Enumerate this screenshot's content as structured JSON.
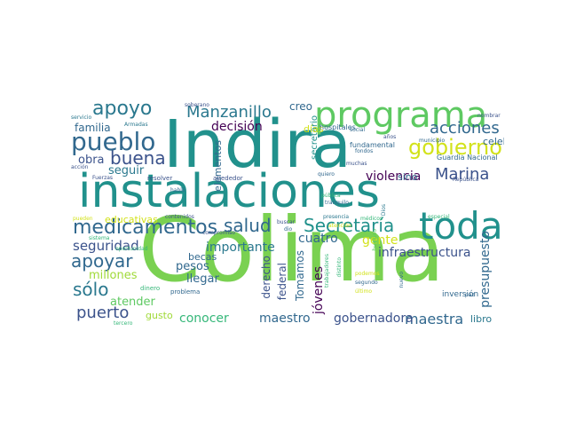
{
  "palette": {
    "teal": "#21918c",
    "green": "#5ec962",
    "lime": "#7ad151",
    "yellow": "#d2e21b",
    "purple": "#440154",
    "indigo": "#3b528b",
    "blue": "#31688e",
    "sea": "#2a788e",
    "mint": "#35b779",
    "pale": "#a0da39"
  },
  "words": [
    {
      "text": "Colima",
      "color": "#7ad151"
    },
    {
      "text": "Indira",
      "color": "#21918c"
    },
    {
      "text": "instalaciones",
      "color": "#21918c"
    },
    {
      "text": "programa",
      "color": "#5ec962"
    },
    {
      "text": "toda",
      "color": "#21918c"
    },
    {
      "text": "pueblo",
      "color": "#31688e"
    },
    {
      "text": "gobierno",
      "color": "#d2e21b"
    },
    {
      "text": "apoyo",
      "color": "#2a788e"
    },
    {
      "text": "Manzanillo",
      "color": "#2a788e"
    },
    {
      "text": "medicamentos",
      "color": "#31688e"
    },
    {
      "text": "Secretaría",
      "color": "#21918c"
    },
    {
      "text": "acciones",
      "color": "#31688e"
    },
    {
      "text": "buena",
      "color": "#3b528b"
    },
    {
      "text": "Marina",
      "color": "#3b528b"
    },
    {
      "text": "apoyar",
      "color": "#31688e"
    },
    {
      "text": "salud",
      "color": "#31688e"
    },
    {
      "text": "puerto",
      "color": "#3b528b"
    },
    {
      "text": "sólo",
      "color": "#2a788e"
    },
    {
      "text": "maestra",
      "color": "#31688e"
    },
    {
      "text": "maestro",
      "color": "#31688e"
    },
    {
      "text": "infraestructura",
      "color": "#3b528b"
    },
    {
      "text": "seguridad",
      "color": "#3b528b"
    },
    {
      "text": "violencia",
      "color": "#440154"
    },
    {
      "text": "gobernadora",
      "color": "#3b528b"
    },
    {
      "text": "presupuesto",
      "color": "#31688e"
    },
    {
      "text": "decisión",
      "color": "#440154"
    },
    {
      "text": "importante",
      "color": "#2a788e"
    },
    {
      "text": "familia",
      "color": "#31688e"
    },
    {
      "text": "obra",
      "color": "#3b528b"
    },
    {
      "text": "seguir",
      "color": "#2a788e"
    },
    {
      "text": "cuatro",
      "color": "#31688e"
    },
    {
      "text": "gente",
      "color": "#d2e21b"
    },
    {
      "text": "millones",
      "color": "#a0da39"
    },
    {
      "text": "atender",
      "color": "#5ec962"
    },
    {
      "text": "conocer",
      "color": "#35b779"
    },
    {
      "text": "becas",
      "color": "#31688e"
    },
    {
      "text": "pesos",
      "color": "#31688e"
    },
    {
      "text": "llegar",
      "color": "#31688e"
    },
    {
      "text": "jóvenes",
      "color": "#440154"
    },
    {
      "text": "Tomamos",
      "color": "#31688e"
    },
    {
      "text": "federal",
      "color": "#3b528b"
    },
    {
      "text": "derecho",
      "color": "#3b528b"
    },
    {
      "text": "creo",
      "color": "#31688e"
    },
    {
      "text": "celebro",
      "color": "#31688e"
    },
    {
      "text": "sino",
      "color": "#31688e"
    },
    {
      "text": "libro",
      "color": "#2a788e"
    },
    {
      "text": "gusto",
      "color": "#a0da39"
    },
    {
      "text": "educativas",
      "color": "#d2e21b"
    },
    {
      "text": "elementos",
      "color": "#31688e"
    },
    {
      "text": "secretario",
      "color": "#21918c"
    },
    {
      "text": "días",
      "color": "#d2e21b"
    },
    {
      "text": "inversión",
      "color": "#31688e"
    },
    {
      "text": "hospitales",
      "color": "#31688e"
    },
    {
      "text": "fundamental",
      "color": "#31688e"
    },
    {
      "text": "Guardia Nacional",
      "color": "#31688e"
    },
    {
      "text": "alrededor",
      "color": "#3b528b"
    },
    {
      "text": "resolver",
      "color": "#3b528b"
    },
    {
      "text": "Fuerzas",
      "color": "#3b528b"
    },
    {
      "text": "habló",
      "color": "#31688e"
    },
    {
      "text": "contenidos",
      "color": "#3b528b"
    },
    {
      "text": "compromiso",
      "color": "#3b528b"
    },
    {
      "text": "problema",
      "color": "#31688e"
    },
    {
      "text": "dinero",
      "color": "#35b779"
    },
    {
      "text": "buscar",
      "color": "#3b528b"
    },
    {
      "text": "dio",
      "color": "#31688e"
    },
    {
      "text": "presencia",
      "color": "#2a788e"
    },
    {
      "text": "médicos",
      "color": "#35b779"
    },
    {
      "text": "especial",
      "color": "#35b779"
    },
    {
      "text": "República",
      "color": "#3b528b"
    },
    {
      "text": "pública",
      "color": "#35b779"
    },
    {
      "text": "tranquilo",
      "color": "#31688e"
    },
    {
      "text": "atención",
      "color": "#d2e21b"
    },
    {
      "text": "podemos",
      "color": "#d2e21b"
    },
    {
      "text": "segundo",
      "color": "#31688e"
    },
    {
      "text": "último",
      "color": "#d2e21b"
    },
    {
      "text": "nuevo",
      "color": "#31688e"
    },
    {
      "text": "paz",
      "color": "#31688e"
    },
    {
      "text": "distinto",
      "color": "#35b779"
    },
    {
      "text": "trabajadores",
      "color": "#35b779"
    },
    {
      "text": "humano",
      "color": "#5ec962"
    },
    {
      "text": "Dios",
      "color": "#2a788e"
    },
    {
      "text": "quiero",
      "color": "#31688e"
    },
    {
      "text": "social",
      "color": "#31688e"
    },
    {
      "text": "muchas",
      "color": "#3b528b"
    },
    {
      "text": "fondos",
      "color": "#31688e"
    },
    {
      "text": "años",
      "color": "#3b528b"
    },
    {
      "text": "municipio",
      "color": "#31688e"
    },
    {
      "text": "tiempo",
      "color": "#31688e"
    },
    {
      "text": "nombrar",
      "color": "#3b528b"
    },
    {
      "text": "soberano",
      "color": "#3b528b"
    },
    {
      "text": "servicio",
      "color": "#2a788e"
    },
    {
      "text": "Armadas",
      "color": "#2a788e"
    },
    {
      "text": "acción",
      "color": "#3b528b"
    },
    {
      "text": "pueden",
      "color": "#d2e21b"
    },
    {
      "text": "sistema",
      "color": "#35b779"
    },
    {
      "text": "tercero",
      "color": "#35b779"
    },
    {
      "text": "oportunidad",
      "color": "#35b779"
    }
  ]
}
